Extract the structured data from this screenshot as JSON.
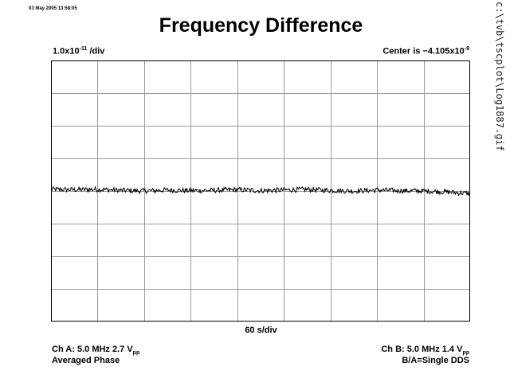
{
  "timestamp": "03 May 2005 13:58:05",
  "side_path": "c:\\tvb\\tscplot\\Log1887.gif",
  "title": "Frequency Difference",
  "scale_label": {
    "base": "1.0x10",
    "exp": "-11",
    "suffix": " /div"
  },
  "center_label": {
    "base": "Center is −4.105x10",
    "exp": "-9"
  },
  "x_div_label": "60 s/div",
  "channel_a": {
    "text": "Ch A: 5.0 MHz 2.7 V",
    "sub": "pp"
  },
  "channel_a_mode": "Averaged Phase",
  "channel_b": {
    "text": "Ch B: 5.0 MHz 1.4 V",
    "sub": "pp"
  },
  "channel_b_mode": "B/A=Single DDS",
  "chart_data": {
    "type": "line",
    "title": "Frequency Difference",
    "grid": true,
    "x_divisions": 9,
    "y_divisions": 8,
    "x_per_div_s": 60,
    "y_per_div": 1e-11,
    "center_value": -4.105e-09,
    "xlim_s": [
      0,
      540
    ],
    "ylim_div": [
      -4,
      4
    ],
    "series": [
      {
        "description_free": true,
        "x_s": [
          0,
          30,
          60,
          90,
          120,
          150,
          180,
          210,
          240,
          270,
          300,
          330,
          360,
          390,
          420,
          450,
          480,
          510,
          540
        ],
        "y_div": [
          0.05,
          0.04,
          0.05,
          0.02,
          0.0,
          0.03,
          0.01,
          0.02,
          0.04,
          0.01,
          0.03,
          0.05,
          0.02,
          0.0,
          0.03,
          0.01,
          0.0,
          -0.03,
          -0.08
        ]
      }
    ]
  }
}
